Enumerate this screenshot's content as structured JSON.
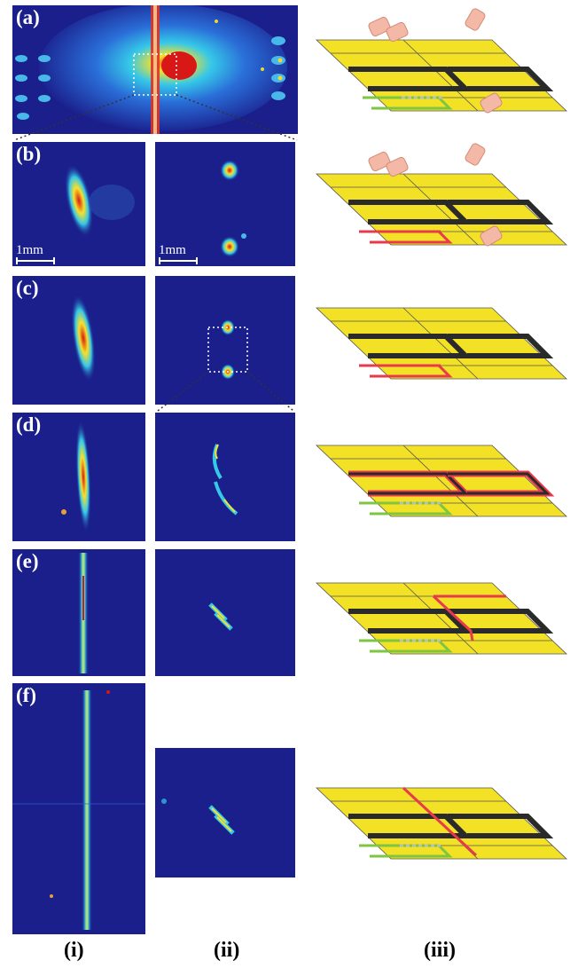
{
  "panel_labels": {
    "a": "(a)",
    "b": "(b)",
    "c": "(c)",
    "d": "(d)",
    "e": "(e)",
    "f": "(f)"
  },
  "scale_bar": {
    "label": "1mm"
  },
  "column_labels": {
    "i": "(i)",
    "ii": "(ii)",
    "iii": "(iii)"
  },
  "colors": {
    "background": "#1a1f8c",
    "plate": "#f2e125",
    "channel": "#2a2a2a",
    "red_path": "#e83a4a",
    "green_path": "#7ec63f",
    "dashed": "#bdbdbd",
    "detector": "#f4b8a6"
  }
}
